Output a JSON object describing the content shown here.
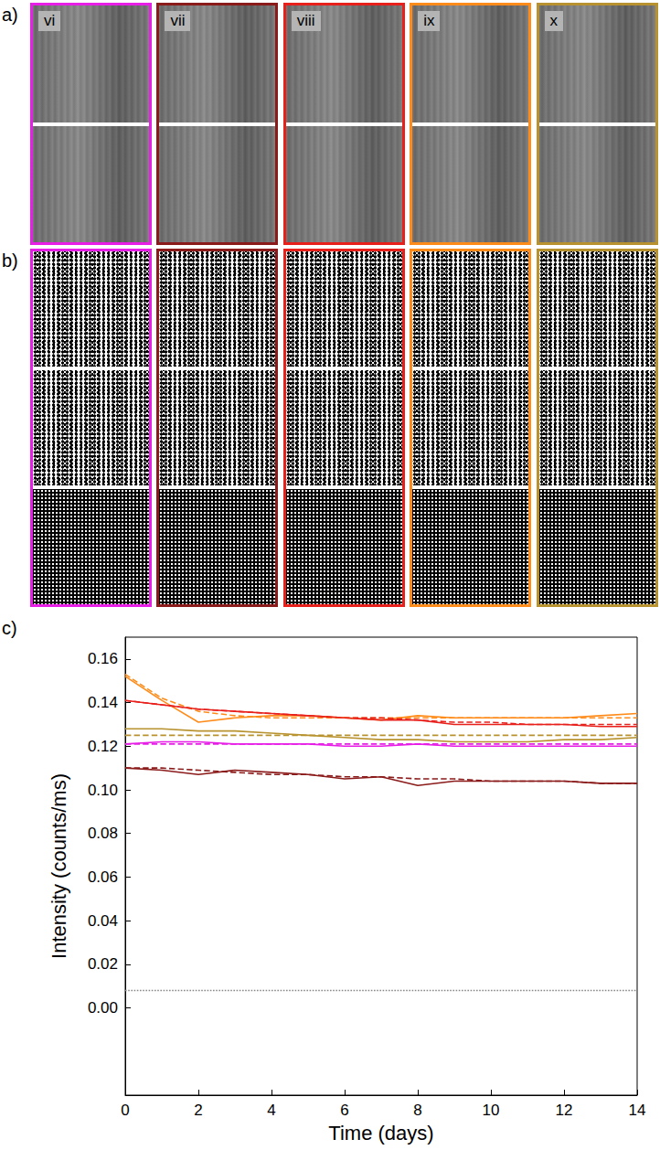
{
  "panels": [
    {
      "label": "a)",
      "rows": 2,
      "frames": [
        {
          "label": "vi",
          "color": "#e61ee6"
        },
        {
          "label": "vii",
          "color": "#8b1a1a"
        },
        {
          "label": "viii",
          "color": "#e8201c"
        },
        {
          "label": "ix",
          "color": "#ff8c1a"
        },
        {
          "label": "x",
          "color": "#b8922e"
        }
      ]
    },
    {
      "label": "b)",
      "rows": 3,
      "frames": [
        {
          "color": "#e61ee6"
        },
        {
          "color": "#8b1a1a"
        },
        {
          "color": "#e8201c"
        },
        {
          "color": "#ff8c1a"
        },
        {
          "color": "#b8922e"
        }
      ]
    }
  ],
  "chart_data": {
    "label": "c)",
    "type": "line",
    "x_label": "Time (days)",
    "y_label": "Intensity (counts/ms)",
    "x": [
      0,
      1,
      2,
      3,
      4,
      5,
      6,
      7,
      8,
      9,
      10,
      11,
      12,
      13,
      14
    ],
    "xlim": [
      0,
      14
    ],
    "xticks": [
      0,
      2,
      4,
      6,
      8,
      10,
      12,
      14
    ],
    "ylim": [
      -0.04,
      0.17
    ],
    "yticks": [
      {
        "value": 0,
        "label": "0.00"
      },
      {
        "value": 0.02,
        "label": "0.02"
      },
      {
        "value": 0.04,
        "label": "0.04"
      },
      {
        "value": 0.06,
        "label": "0.06"
      },
      {
        "value": 0.08,
        "label": "0.08"
      },
      {
        "value": 0.1,
        "label": "0.10"
      },
      {
        "value": 0.12,
        "label": "0.12"
      },
      {
        "value": 0.14,
        "label": "0.14"
      },
      {
        "value": 0.16,
        "label": "0.16"
      }
    ],
    "grid": false,
    "series": [
      {
        "color": "#ff8c1a",
        "line_style": "solid",
        "values": [
          0.152,
          0.141,
          0.131,
          0.133,
          0.134,
          0.134,
          0.133,
          0.132,
          0.134,
          0.133,
          0.133,
          0.133,
          0.133,
          0.134,
          0.135
        ]
      },
      {
        "color": "#ff8c1a",
        "line_style": "dashed",
        "values": [
          0.153,
          0.142,
          0.136,
          0.134,
          0.133,
          0.133,
          0.133,
          0.133,
          0.133,
          0.133,
          0.133,
          0.133,
          0.133,
          0.133,
          0.133
        ]
      },
      {
        "color": "#e8201c",
        "line_style": "solid",
        "values": [
          0.141,
          0.139,
          0.137,
          0.136,
          0.135,
          0.134,
          0.133,
          0.132,
          0.132,
          0.13,
          0.13,
          0.13,
          0.13,
          0.129,
          0.129
        ]
      },
      {
        "color": "#e8201c",
        "line_style": "dashed",
        "values": [
          0.141,
          0.139,
          0.137,
          0.136,
          0.135,
          0.134,
          0.133,
          0.133,
          0.132,
          0.131,
          0.131,
          0.13,
          0.13,
          0.13,
          0.13
        ]
      },
      {
        "color": "#b8922e",
        "line_style": "solid",
        "values": [
          0.128,
          0.128,
          0.127,
          0.127,
          0.126,
          0.125,
          0.124,
          0.123,
          0.123,
          0.122,
          0.122,
          0.122,
          0.123,
          0.123,
          0.124
        ]
      },
      {
        "color": "#b8922e",
        "line_style": "dashed",
        "values": [
          0.125,
          0.125,
          0.125,
          0.125,
          0.125,
          0.125,
          0.125,
          0.125,
          0.125,
          0.125,
          0.125,
          0.125,
          0.125,
          0.125,
          0.125
        ]
      },
      {
        "color": "#e61ee6",
        "line_style": "solid",
        "values": [
          0.121,
          0.122,
          0.122,
          0.121,
          0.121,
          0.121,
          0.12,
          0.12,
          0.121,
          0.12,
          0.12,
          0.12,
          0.12,
          0.12,
          0.12
        ]
      },
      {
        "color": "#e61ee6",
        "line_style": "dashed",
        "values": [
          0.121,
          0.121,
          0.121,
          0.121,
          0.121,
          0.121,
          0.121,
          0.121,
          0.121,
          0.121,
          0.121,
          0.121,
          0.121,
          0.121,
          0.121
        ]
      },
      {
        "color": "#8b1a1a",
        "line_style": "solid",
        "values": [
          0.11,
          0.109,
          0.107,
          0.109,
          0.108,
          0.107,
          0.105,
          0.106,
          0.102,
          0.104,
          0.104,
          0.104,
          0.104,
          0.103,
          0.103
        ]
      },
      {
        "color": "#8b1a1a",
        "line_style": "dashed",
        "values": [
          0.11,
          0.11,
          0.109,
          0.108,
          0.107,
          0.107,
          0.106,
          0.106,
          0.105,
          0.105,
          0.104,
          0.104,
          0.104,
          0.103,
          0.103
        ]
      },
      {
        "color": "#888888",
        "line_style": "dotted",
        "values": [
          0.008,
          0.008,
          0.008,
          0.008,
          0.008,
          0.008,
          0.008,
          0.008,
          0.008,
          0.008,
          0.008,
          0.008,
          0.008,
          0.008,
          0.008
        ]
      }
    ]
  }
}
